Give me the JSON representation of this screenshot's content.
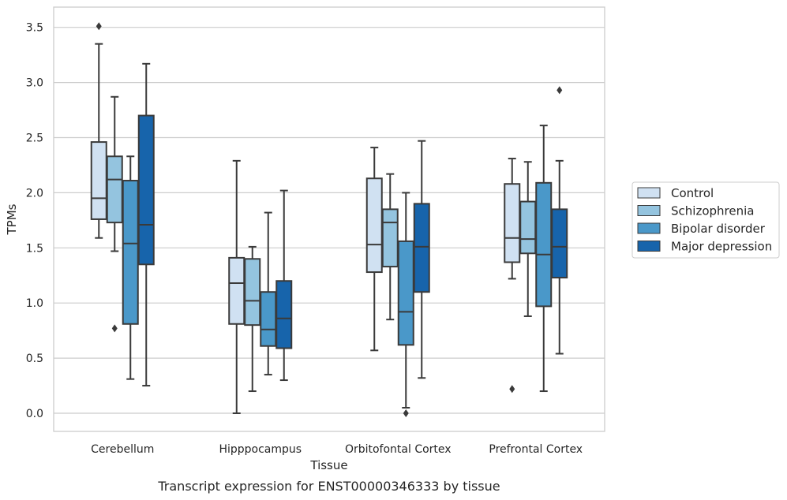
{
  "chart_data": {
    "type": "box",
    "caption": "Transcript expression for ENST00000346333 by tissue",
    "xlabel": "Tissue",
    "ylabel": "TPMs",
    "ylim": [
      -0.17,
      3.68
    ],
    "yticks": [
      0.0,
      0.5,
      1.0,
      1.5,
      2.0,
      2.5,
      3.0,
      3.5
    ],
    "ytick_labels": [
      "0.0",
      "0.5",
      "1.0",
      "1.5",
      "2.0",
      "2.5",
      "3.0",
      "3.5"
    ],
    "grid": "horizontal",
    "legend_position": "right",
    "categories": [
      "Cerebellum",
      "Hipppocampus",
      "Orbitofontal Cortex",
      "Prefrontal Cortex"
    ],
    "series": [
      {
        "name": "Control",
        "color": "#d0e1f2",
        "boxes": [
          {
            "whislo": 1.59,
            "q1": 1.76,
            "med": 1.95,
            "q3": 2.46,
            "whishi": 3.35,
            "fliers": [
              3.51
            ]
          },
          {
            "whislo": 0.0,
            "q1": 0.81,
            "med": 1.18,
            "q3": 1.41,
            "whishi": 2.29,
            "fliers": []
          },
          {
            "whislo": 0.57,
            "q1": 1.28,
            "med": 1.53,
            "q3": 2.13,
            "whishi": 2.41,
            "fliers": []
          },
          {
            "whislo": 1.22,
            "q1": 1.37,
            "med": 1.59,
            "q3": 2.08,
            "whishi": 2.31,
            "fliers": [
              0.22
            ]
          }
        ]
      },
      {
        "name": "Schizophrenia",
        "color": "#94c4df",
        "boxes": [
          {
            "whislo": 1.47,
            "q1": 1.73,
            "med": 2.12,
            "q3": 2.33,
            "whishi": 2.87,
            "fliers": [
              0.77
            ]
          },
          {
            "whislo": 0.2,
            "q1": 0.8,
            "med": 1.02,
            "q3": 1.4,
            "whishi": 1.51,
            "fliers": []
          },
          {
            "whislo": 0.85,
            "q1": 1.33,
            "med": 1.73,
            "q3": 1.85,
            "whishi": 2.17,
            "fliers": []
          },
          {
            "whislo": 0.88,
            "q1": 1.45,
            "med": 1.58,
            "q3": 1.92,
            "whishi": 2.28,
            "fliers": []
          }
        ]
      },
      {
        "name": "Bipolar disorder",
        "color": "#4a98c9",
        "boxes": [
          {
            "whislo": 0.31,
            "q1": 0.81,
            "med": 1.54,
            "q3": 2.11,
            "whishi": 2.33,
            "fliers": []
          },
          {
            "whislo": 0.35,
            "q1": 0.61,
            "med": 0.76,
            "q3": 1.1,
            "whishi": 1.82,
            "fliers": []
          },
          {
            "whislo": 0.05,
            "q1": 0.62,
            "med": 0.92,
            "q3": 1.56,
            "whishi": 2.0,
            "fliers": [
              0.0
            ]
          },
          {
            "whislo": 0.2,
            "q1": 0.97,
            "med": 1.44,
            "q3": 2.09,
            "whishi": 2.61,
            "fliers": []
          }
        ]
      },
      {
        "name": "Major depression",
        "color": "#1764ab",
        "boxes": [
          {
            "whislo": 0.25,
            "q1": 1.35,
            "med": 1.71,
            "q3": 2.7,
            "whishi": 3.17,
            "fliers": []
          },
          {
            "whislo": 0.3,
            "q1": 0.59,
            "med": 0.86,
            "q3": 1.2,
            "whishi": 2.02,
            "fliers": []
          },
          {
            "whislo": 0.32,
            "q1": 1.1,
            "med": 1.51,
            "q3": 1.9,
            "whishi": 2.47,
            "fliers": []
          },
          {
            "whislo": 0.54,
            "q1": 1.23,
            "med": 1.51,
            "q3": 1.85,
            "whishi": 2.29,
            "fliers": [
              2.93
            ]
          }
        ]
      }
    ]
  }
}
